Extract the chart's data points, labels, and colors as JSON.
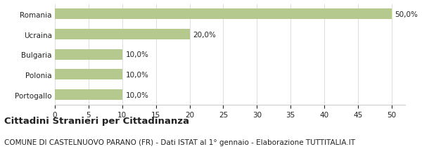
{
  "categories": [
    "Romania",
    "Ucraina",
    "Bulgaria",
    "Polonia",
    "Portogallo"
  ],
  "values": [
    50.0,
    20.0,
    10.0,
    10.0,
    10.0
  ],
  "labels": [
    "50,0%",
    "20,0%",
    "10,0%",
    "10,0%",
    "10,0%"
  ],
  "bar_color": "#b5c98e",
  "background_color": "#ffffff",
  "xlim": [
    0,
    52
  ],
  "xticks": [
    0,
    5,
    10,
    15,
    20,
    25,
    30,
    35,
    40,
    45,
    50
  ],
  "title_bold": "Cittadini Stranieri per Cittadinanza",
  "subtitle": "COMUNE DI CASTELNUOVO PARANO (FR) - Dati ISTAT al 1° gennaio - Elaborazione TUTTITALIA.IT",
  "title_fontsize": 9.5,
  "subtitle_fontsize": 7.5,
  "label_fontsize": 7.5,
  "tick_fontsize": 7.5,
  "ytick_fontsize": 7.5,
  "grid_color": "#dddddd",
  "spine_color": "#cccccc",
  "text_color": "#222222"
}
